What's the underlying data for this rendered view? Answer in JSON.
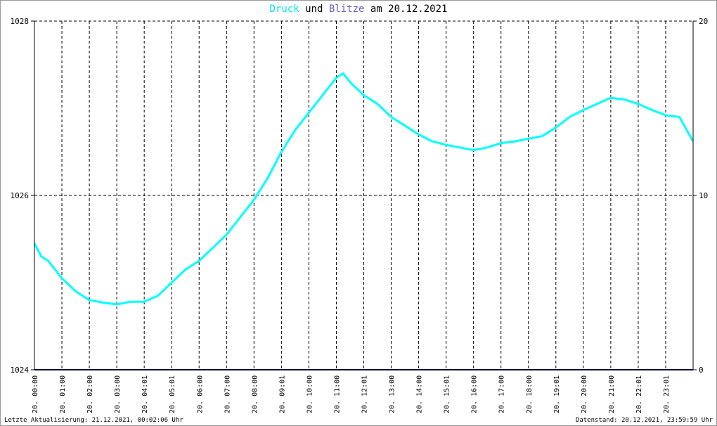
{
  "title": {
    "part1": "Druck",
    "part2": " und ",
    "part3": "Blitze",
    "part4": " am 20.12.2021",
    "color_druck": "#00ffff",
    "color_blitze": "#7b68ee"
  },
  "footer": {
    "left": "Letzte Aktualisierung: 21.12.2021, 00:02:06 Uhr",
    "right": "Datenstand: 20.12.2021, 23:59:59 Uhr"
  },
  "chart_data": {
    "type": "line",
    "title": "Druck und Blitze am 20.12.2021",
    "ylim_left": [
      1024,
      1028
    ],
    "yticks_left": [
      "1024",
      "1026",
      "1028"
    ],
    "ylim_right": [
      0,
      20
    ],
    "yticks_right": [
      "0",
      "10",
      "20"
    ],
    "x_tick_labels": [
      "20. 00:00",
      "20. 01:00",
      "20. 02:00",
      "20. 03:00",
      "20. 04:01",
      "20. 05:01",
      "20. 06:00",
      "20. 07:00",
      "20. 08:00",
      "20. 09:01",
      "20. 10:00",
      "20. 11:00",
      "20. 12:01",
      "20. 13:00",
      "20. 14:00",
      "20. 15:01",
      "20. 16:00",
      "20. 17:00",
      "20. 18:00",
      "20. 19:01",
      "20. 20:00",
      "20. 21:00",
      "20. 22:01",
      "20. 23:01"
    ],
    "grid": true,
    "series": [
      {
        "name": "Druck",
        "color": "#00ffff",
        "axis": "left",
        "x_hours": [
          0,
          0.25,
          0.5,
          0.75,
          1,
          1.5,
          2,
          2.5,
          3,
          3.5,
          4,
          4.5,
          5,
          5.5,
          6,
          6.5,
          7,
          7.5,
          8,
          8.5,
          9,
          9.5,
          10,
          10.5,
          11,
          11.25,
          11.5,
          12,
          12.5,
          13,
          13.5,
          14,
          14.5,
          15,
          15.5,
          16,
          16.5,
          17,
          17.5,
          18,
          18.5,
          19,
          19.5,
          20,
          20.5,
          21,
          21.5,
          22,
          22.5,
          23,
          23.5,
          24
        ],
        "values": [
          1025.45,
          1025.3,
          1025.25,
          1025.15,
          1025.05,
          1024.9,
          1024.8,
          1024.77,
          1024.75,
          1024.78,
          1024.78,
          1024.85,
          1025.0,
          1025.15,
          1025.25,
          1025.4,
          1025.55,
          1025.75,
          1025.95,
          1026.2,
          1026.5,
          1026.75,
          1026.95,
          1027.15,
          1027.35,
          1027.4,
          1027.3,
          1027.15,
          1027.05,
          1026.9,
          1026.8,
          1026.7,
          1026.62,
          1026.58,
          1026.55,
          1026.52,
          1026.55,
          1026.6,
          1026.62,
          1026.65,
          1026.68,
          1026.78,
          1026.9,
          1026.98,
          1027.05,
          1027.12,
          1027.1,
          1027.05,
          1026.98,
          1026.92,
          1026.9,
          1026.62
        ]
      },
      {
        "name": "Blitze",
        "color": "#191970",
        "axis": "right",
        "x_hours": [
          0,
          24
        ],
        "values": [
          0,
          0
        ]
      }
    ]
  }
}
